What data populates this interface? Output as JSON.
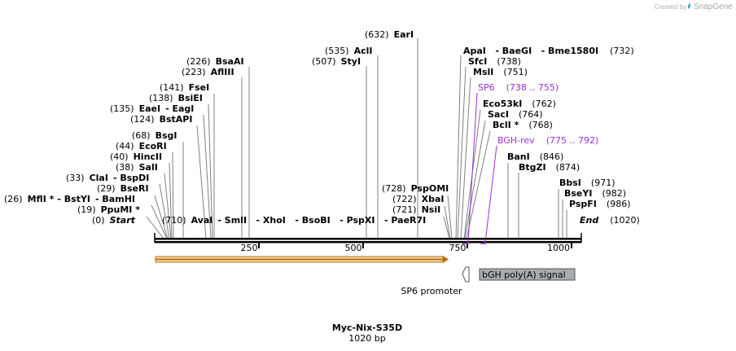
{
  "credit": {
    "prefix": "Created by",
    "brand": "SnapGene"
  },
  "plasmid": {
    "name": "Myc-Nix-S35D",
    "length": "1020 bp"
  },
  "ruler": [
    "250",
    "500",
    "750",
    "1000"
  ],
  "sites": {
    "s632": {
      "pos": "(632)",
      "name": "EarI"
    },
    "s535": {
      "pos": "(535)",
      "name": "AclI"
    },
    "s507": {
      "pos": "(507)",
      "name": "StyI"
    },
    "s226": {
      "pos": "(226)",
      "name": "BsaAI"
    },
    "s223": {
      "pos": "(223)",
      "name": "AflIII"
    },
    "s141": {
      "pos": "(141)",
      "name": "FseI"
    },
    "s138": {
      "pos": "(138)",
      "name": "BsiEI"
    },
    "s135": {
      "pos": "(135)",
      "name": "EaeI",
      "alt": "- EagI"
    },
    "s124": {
      "pos": "(124)",
      "name": "BstAPI"
    },
    "s68": {
      "pos": "(68)",
      "name": "BsgI"
    },
    "s44": {
      "pos": "(44)",
      "name": "EcoRI"
    },
    "s40": {
      "pos": "(40)",
      "name": "HincII"
    },
    "s38": {
      "pos": "(38)",
      "name": "SalI"
    },
    "s33": {
      "pos": "(33)",
      "name": "ClaI",
      "alt": "- BspDI"
    },
    "s29": {
      "pos": "(29)",
      "name": "BseRI"
    },
    "s26": {
      "pos": "(26)",
      "name": "MflI *",
      "alt": "- BstYI",
      "alt2": "- BamHI"
    },
    "s19": {
      "pos": "(19)",
      "name": "PpuMI *"
    },
    "s0": {
      "pos": "(0)",
      "name": "Start"
    },
    "s710": {
      "pos": "(710)",
      "name": "AvaI",
      "rest": "- SmlI   - XhoI   - BsoBI   - PspXI   - PaeR7I"
    },
    "s728": {
      "pos": "(728)",
      "name": "PspOMI"
    },
    "s722": {
      "pos": "(722)",
      "name": "XbaI"
    },
    "s721": {
      "pos": "(721)",
      "name": "NsiI"
    },
    "s732": {
      "name": "ApaI   - BaeGI   - Bme1580I",
      "pos": "(732)"
    },
    "s738": {
      "name": "SfcI",
      "pos": "(738)"
    },
    "s751": {
      "name": "MslI",
      "pos": "(751)"
    },
    "s762": {
      "name": "Eco53kI",
      "pos": "(762)"
    },
    "s764": {
      "name": "SacI",
      "pos": "(764)"
    },
    "s768": {
      "name": "BclI *",
      "pos": "(768)"
    },
    "s846": {
      "name": "BanI",
      "pos": "(846)"
    },
    "s874": {
      "name": "BtgZI",
      "pos": "(874)"
    },
    "s971": {
      "name": "BbsI",
      "pos": "(971)"
    },
    "s982": {
      "name": "BseYI",
      "pos": "(982)"
    },
    "s986": {
      "name": "PspFI",
      "pos": "(986)"
    },
    "s1020": {
      "name": "End",
      "pos": "(1020)"
    }
  },
  "primers": {
    "sp6": {
      "name": "SP6",
      "range": "(738 .. 755)"
    },
    "bgh": {
      "name": "BGH-rev",
      "range": "(775 .. 792)"
    }
  },
  "features": {
    "promoter": "SP6 promoter",
    "polya": "bGH poly(A) signal"
  },
  "colors": {
    "primer": "#9b30d9",
    "orf": "#f6d6a0",
    "orf_stroke": "#c07010",
    "polya_fill": "#a8acb0"
  }
}
